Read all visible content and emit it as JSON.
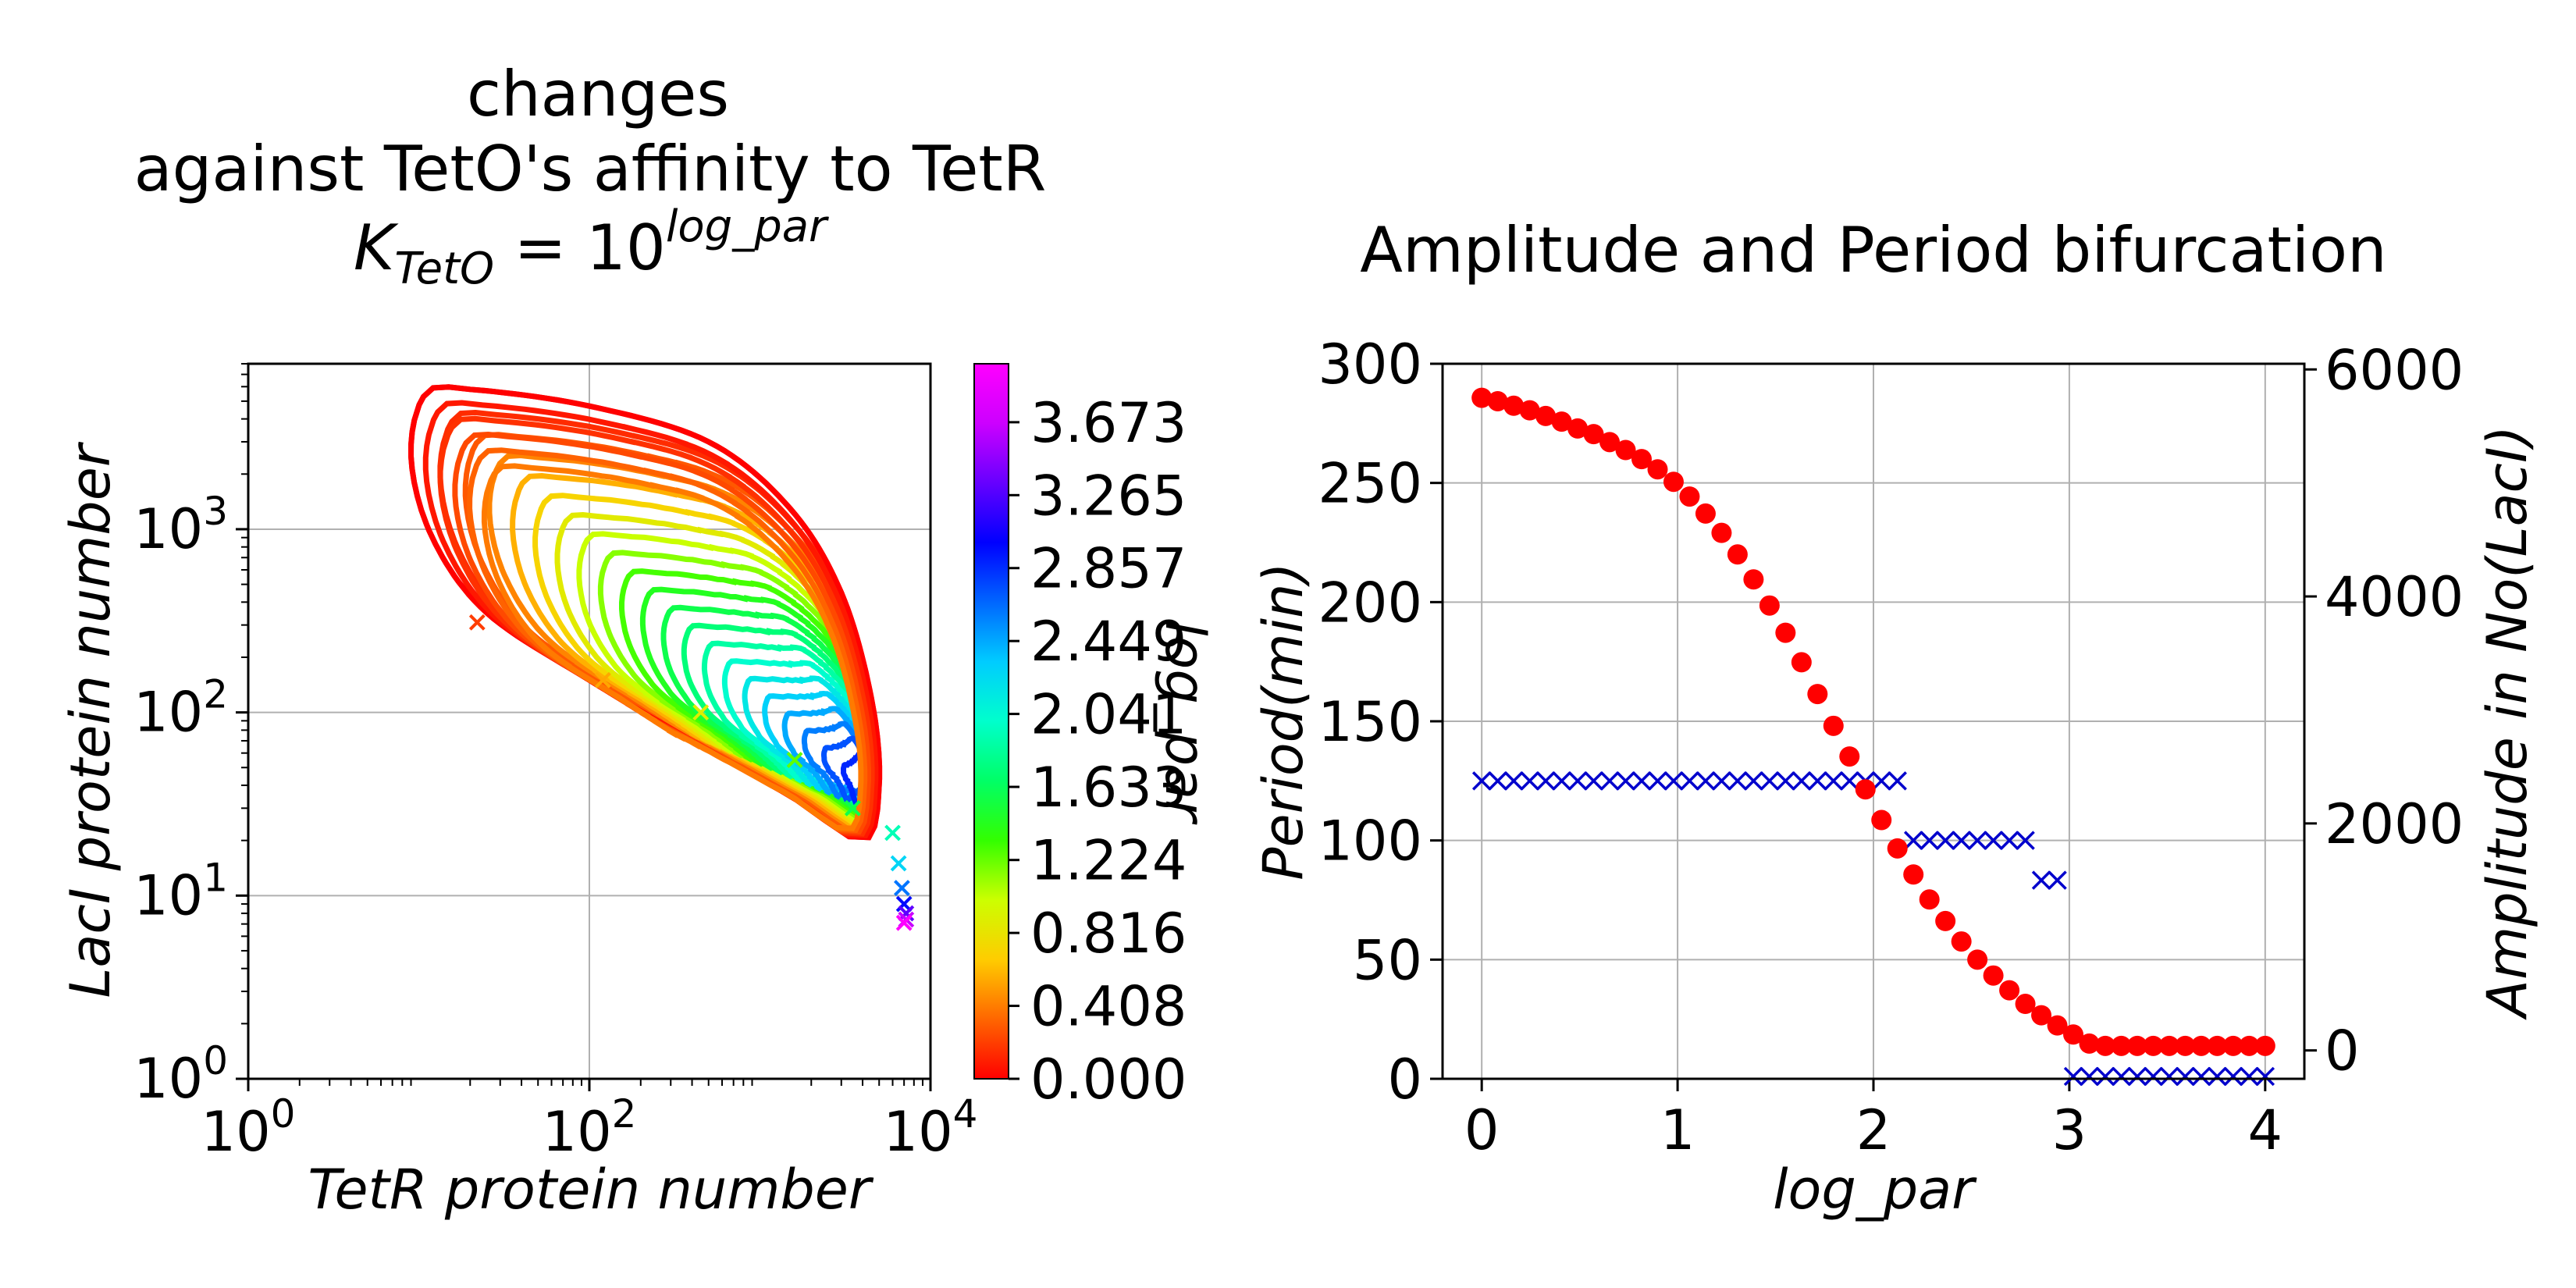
{
  "chart_data": [
    {
      "type": "line",
      "title_lines": [
        "changes",
        "against TetO's affinity to TetR"
      ],
      "title_formula": {
        "base": "K",
        "subscript": "TetO",
        "equals": " = 10",
        "exponent": "log_par"
      },
      "xlabel": "TetR protein number",
      "ylabel": "LacI protein number",
      "xscale": "log",
      "yscale": "log",
      "xlim": [
        1,
        10000
      ],
      "ylim": [
        1,
        8000
      ],
      "xticks": [
        {
          "v": 1,
          "m": "10",
          "e": "0"
        },
        {
          "v": 100,
          "m": "10",
          "e": "2"
        },
        {
          "v": 10000,
          "m": "10",
          "e": "4"
        }
      ],
      "yticks": [
        {
          "v": 1,
          "m": "10",
          "e": "0"
        },
        {
          "v": 10,
          "m": "10",
          "e": "1"
        },
        {
          "v": 100,
          "m": "10",
          "e": "2"
        },
        {
          "v": 1000,
          "m": "10",
          "e": "3"
        }
      ],
      "grid": true,
      "colorbar": {
        "label": "log_par",
        "min": 0,
        "max": 4,
        "ticks": [
          "0.000",
          "0.408",
          "0.816",
          "1.224",
          "1.633",
          "2.041",
          "2.449",
          "2.857",
          "3.265",
          "3.673"
        ],
        "colors": [
          "#ff0000",
          "#ff6600",
          "#ffcc00",
          "#ccff00",
          "#33ff00",
          "#00ff66",
          "#00ffcc",
          "#00ccff",
          "#0066ff",
          "#0000ff",
          "#6600ff",
          "#cc00ff",
          "#ff00ff"
        ]
      },
      "orbits": {
        "param_start": 0,
        "param_step": 0.0816,
        "oscillating_count": 37,
        "loop_count": 22,
        "outer_loop_points": [
          [
            11,
            5500
          ],
          [
            20,
            5800
          ],
          [
            100,
            4700
          ],
          [
            500,
            3000
          ],
          [
            1500,
            1300
          ],
          [
            3000,
            450
          ],
          [
            4500,
            120
          ],
          [
            5000,
            40
          ],
          [
            4000,
            20
          ],
          [
            1500,
            35
          ],
          [
            400,
            70
          ],
          [
            100,
            150
          ],
          [
            25,
            350
          ],
          [
            12,
            900
          ],
          [
            9,
            2500
          ]
        ],
        "inner_loop_points": [
          [
            4000,
            40
          ],
          [
            4400,
            50
          ],
          [
            4600,
            40
          ],
          [
            4200,
            30
          ]
        ],
        "marker_points": [
          [
            22,
            310
          ],
          [
            120,
            150
          ],
          [
            450,
            100
          ],
          [
            1600,
            55
          ],
          [
            3500,
            30
          ],
          [
            6000,
            22
          ],
          [
            6500,
            15
          ],
          [
            6800,
            11
          ],
          [
            7000,
            9
          ],
          [
            7200,
            8
          ],
          [
            7200,
            7.4
          ],
          [
            7000,
            7.1
          ]
        ]
      }
    },
    {
      "type": "scatter",
      "title": "Amplitude and Period bifurcation",
      "xlabel": "log_par",
      "ylabel": "Period(min)",
      "y2label": "Amplitude in No(LacI)",
      "xlim": [
        -0.2,
        4.2
      ],
      "ylim": [
        0,
        300
      ],
      "y2lim": [
        -250,
        6050
      ],
      "xticks": [
        0,
        1,
        2,
        3,
        4
      ],
      "yticks": [
        0,
        50,
        100,
        150,
        200,
        250,
        300
      ],
      "y2ticks": [
        0,
        2000,
        4000,
        6000
      ],
      "grid": true,
      "series": [
        {
          "axis": "left",
          "marker": "x",
          "color": "#0000cc",
          "points": [
            [
              0.0,
              125
            ],
            [
              0.0816,
              125
            ],
            [
              0.1633,
              125
            ],
            [
              0.2449,
              125
            ],
            [
              0.3265,
              125
            ],
            [
              0.4082,
              125
            ],
            [
              0.4898,
              125
            ],
            [
              0.5714,
              125
            ],
            [
              0.6531,
              125
            ],
            [
              0.7347,
              125
            ],
            [
              0.8163,
              125
            ],
            [
              0.898,
              125
            ],
            [
              0.9796,
              125
            ],
            [
              1.0612,
              125
            ],
            [
              1.1429,
              125
            ],
            [
              1.2245,
              125
            ],
            [
              1.3061,
              125
            ],
            [
              1.3878,
              125
            ],
            [
              1.4694,
              125
            ],
            [
              1.551,
              125
            ],
            [
              1.6327,
              125
            ],
            [
              1.7143,
              125
            ],
            [
              1.7959,
              125
            ],
            [
              1.8776,
              125
            ],
            [
              1.9592,
              125
            ],
            [
              2.0408,
              125
            ],
            [
              2.1224,
              125
            ],
            [
              2.2041,
              100
            ],
            [
              2.2857,
              100
            ],
            [
              2.3673,
              100
            ],
            [
              2.449,
              100
            ],
            [
              2.5306,
              100
            ],
            [
              2.6122,
              100
            ],
            [
              2.6939,
              100
            ],
            [
              2.7755,
              100
            ],
            [
              2.8571,
              83.3
            ],
            [
              2.9388,
              83.3
            ],
            [
              3.0204,
              1
            ],
            [
              3.102,
              1
            ],
            [
              3.1837,
              1
            ],
            [
              3.2653,
              1
            ],
            [
              3.3469,
              1
            ],
            [
              3.4286,
              1
            ],
            [
              3.5102,
              1
            ],
            [
              3.5918,
              1
            ],
            [
              3.6735,
              1
            ],
            [
              3.7551,
              1
            ],
            [
              3.8367,
              1
            ],
            [
              3.9184,
              1
            ],
            [
              4.0,
              1
            ]
          ]
        },
        {
          "axis": "right",
          "marker": "o",
          "color": "#ff0000",
          "points": [
            [
              0.0,
              5750
            ],
            [
              0.0816,
              5720
            ],
            [
              0.1633,
              5680
            ],
            [
              0.2449,
              5640
            ],
            [
              0.3265,
              5590
            ],
            [
              0.4082,
              5540
            ],
            [
              0.4898,
              5480
            ],
            [
              0.5714,
              5430
            ],
            [
              0.6531,
              5360
            ],
            [
              0.7347,
              5290
            ],
            [
              0.8163,
              5210
            ],
            [
              0.898,
              5120
            ],
            [
              0.9796,
              5010
            ],
            [
              1.0612,
              4880
            ],
            [
              1.1429,
              4730
            ],
            [
              1.2245,
              4560
            ],
            [
              1.3061,
              4370
            ],
            [
              1.3878,
              4150
            ],
            [
              1.4694,
              3920
            ],
            [
              1.551,
              3680
            ],
            [
              1.6327,
              3420
            ],
            [
              1.7143,
              3140
            ],
            [
              1.7959,
              2860
            ],
            [
              1.8776,
              2590
            ],
            [
              1.9592,
              2300
            ],
            [
              2.0408,
              2030
            ],
            [
              2.1224,
              1780
            ],
            [
              2.2041,
              1550
            ],
            [
              2.2857,
              1330
            ],
            [
              2.3673,
              1140
            ],
            [
              2.449,
              960
            ],
            [
              2.5306,
              800
            ],
            [
              2.6122,
              660
            ],
            [
              2.6939,
              530
            ],
            [
              2.7755,
              410
            ],
            [
              2.8571,
              310
            ],
            [
              2.9388,
              220
            ],
            [
              3.0204,
              140
            ],
            [
              3.102,
              60
            ],
            [
              3.1837,
              40
            ],
            [
              3.2653,
              40
            ],
            [
              3.3469,
              40
            ],
            [
              3.4286,
              40
            ],
            [
              3.5102,
              40
            ],
            [
              3.5918,
              40
            ],
            [
              3.6735,
              40
            ],
            [
              3.7551,
              40
            ],
            [
              3.8367,
              40
            ],
            [
              3.9184,
              40
            ],
            [
              4.0,
              40
            ]
          ]
        }
      ]
    }
  ]
}
